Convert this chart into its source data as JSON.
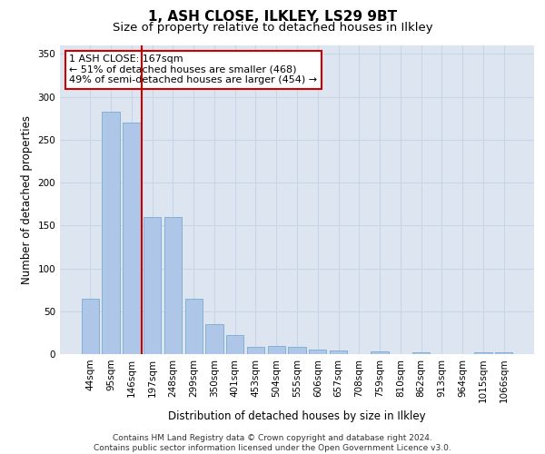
{
  "title": "1, ASH CLOSE, ILKLEY, LS29 9BT",
  "subtitle": "Size of property relative to detached houses in Ilkley",
  "xlabel": "Distribution of detached houses by size in Ilkley",
  "ylabel": "Number of detached properties",
  "categories": [
    "44sqm",
    "95sqm",
    "146sqm",
    "197sqm",
    "248sqm",
    "299sqm",
    "350sqm",
    "401sqm",
    "453sqm",
    "504sqm",
    "555sqm",
    "606sqm",
    "657sqm",
    "708sqm",
    "759sqm",
    "810sqm",
    "862sqm",
    "913sqm",
    "964sqm",
    "1015sqm",
    "1066sqm"
  ],
  "values": [
    65,
    283,
    270,
    160,
    160,
    65,
    35,
    22,
    8,
    10,
    8,
    5,
    4,
    0,
    3,
    0,
    2,
    0,
    0,
    2,
    2
  ],
  "bar_color": "#aec6e8",
  "bar_edge_color": "#7aaad0",
  "vline_color": "#cc0000",
  "vline_x_index": 2.5,
  "annotation_text": "1 ASH CLOSE: 167sqm\n← 51% of detached houses are smaller (468)\n49% of semi-detached houses are larger (454) →",
  "annotation_box_color": "#ffffff",
  "annotation_box_edge_color": "#cc0000",
  "ylim": [
    0,
    360
  ],
  "yticks": [
    0,
    50,
    100,
    150,
    200,
    250,
    300,
    350
  ],
  "grid_color": "#c8d4e8",
  "background_color": "#dde6f0",
  "footer_text": "Contains HM Land Registry data © Crown copyright and database right 2024.\nContains public sector information licensed under the Open Government Licence v3.0.",
  "title_fontsize": 11,
  "subtitle_fontsize": 9.5,
  "axis_label_fontsize": 8.5,
  "tick_fontsize": 7.5,
  "annotation_fontsize": 8,
  "footer_fontsize": 6.5
}
